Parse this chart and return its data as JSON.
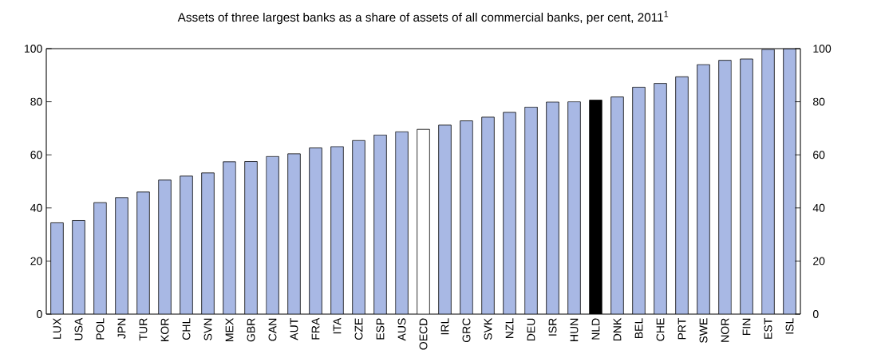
{
  "chart_data": {
    "type": "bar",
    "title": "Assets of three largest banks as a share of assets of all commercial banks, per cent, 2011$^{1}$",
    "categories": [
      "LUX",
      "USA",
      "POL",
      "JPN",
      "TUR",
      "KOR",
      "CHL",
      "SVN",
      "MEX",
      "GBR",
      "CAN",
      "AUT",
      "FRA",
      "ITA",
      "CZE",
      "ESP",
      "AUS",
      "OECD",
      "IRL",
      "GRC",
      "SVK",
      "NZL",
      "DEU",
      "ISR",
      "HUN",
      "NLD",
      "DNK",
      "BEL",
      "CHE",
      "PRT",
      "SWE",
      "NOR",
      "FIN",
      "EST",
      "ISL"
    ],
    "values": [
      34.4,
      35.3,
      42.0,
      43.9,
      46.0,
      50.5,
      52.0,
      53.2,
      57.4,
      57.5,
      59.4,
      60.4,
      62.6,
      63.1,
      65.4,
      67.5,
      68.7,
      69.6,
      71.2,
      72.8,
      74.2,
      76.0,
      78.0,
      79.9,
      80.0,
      80.6,
      81.8,
      85.5,
      86.9,
      89.4,
      94.0,
      95.6,
      96.1,
      99.7,
      100
    ],
    "colors": [
      "#a8b8e4",
      "#a8b8e4",
      "#a8b8e4",
      "#a8b8e4",
      "#a8b8e4",
      "#a8b8e4",
      "#a8b8e4",
      "#a8b8e4",
      "#a8b8e4",
      "#a8b8e4",
      "#a8b8e4",
      "#a8b8e4",
      "#a8b8e4",
      "#a8b8e4",
      "#a8b8e4",
      "#a8b8e4",
      "#a8b8e4",
      "#ffffff",
      "#a8b8e4",
      "#a8b8e4",
      "#a8b8e4",
      "#a8b8e4",
      "#a8b8e4",
      "#a8b8e4",
      "#a8b8e4",
      "#000000",
      "#a8b8e4",
      "#a8b8e4",
      "#a8b8e4",
      "#a8b8e4",
      "#a8b8e4",
      "#a8b8e4",
      "#a8b8e4",
      "#a8b8e4",
      "#a8b8e4"
    ],
    "ylim": [
      0,
      100
    ],
    "yticks": [
      0,
      20,
      40,
      60,
      80,
      100
    ],
    "y2lim": [
      0,
      100
    ],
    "y2ticks": [
      0,
      20,
      40,
      60,
      80,
      100
    ]
  }
}
